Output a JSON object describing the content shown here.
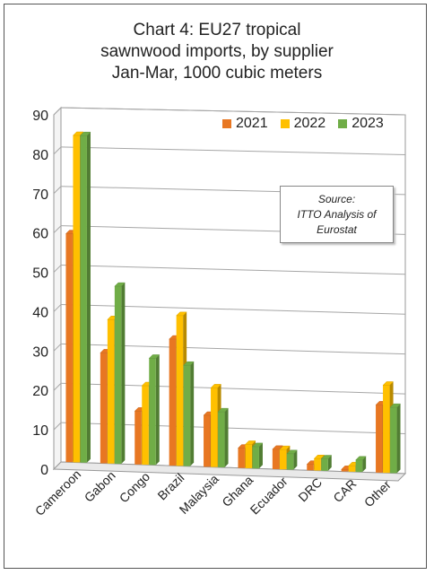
{
  "chart_data": {
    "type": "bar",
    "title_lines": [
      "Chart 4: EU27 tropical",
      "sawnwood imports, by supplier",
      "Jan-Mar, 1000 cubic meters"
    ],
    "categories": [
      "Cameroon",
      "Gabon",
      "Congo",
      "Brazil",
      "Malaysia",
      "Ghana",
      "Ecuador",
      "DRC",
      "CAR",
      "Other"
    ],
    "series": [
      {
        "name": "2021",
        "color": "#E87722",
        "values": [
          58,
          28,
          13.5,
          32,
          13,
          5,
          5,
          1.5,
          0.5,
          17
        ]
      },
      {
        "name": "2022",
        "color": "#FFC000",
        "values": [
          83,
          36.5,
          20,
          38,
          20,
          6,
          5,
          3,
          1.5,
          22
        ]
      },
      {
        "name": "2023",
        "color": "#70AD47",
        "values": [
          83,
          45,
          27,
          25.5,
          14,
          5.5,
          4,
          3,
          3,
          16.5
        ]
      }
    ],
    "y_ticks": [
      "0",
      "10",
      "20",
      "30",
      "40",
      "50",
      "60",
      "70",
      "80",
      "90"
    ],
    "ylim": [
      0,
      90
    ],
    "grid": true,
    "legend_position": "top-right",
    "annotation": [
      "Source:",
      "ITTO Analysis of",
      "Eurostat"
    ]
  }
}
